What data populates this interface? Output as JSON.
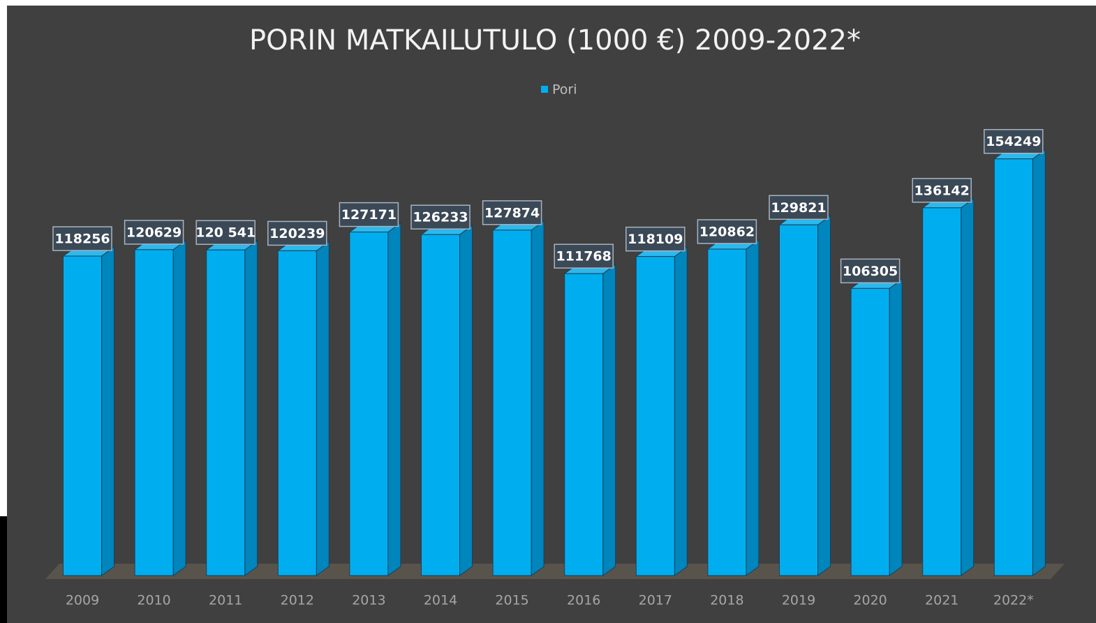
{
  "chart_data": {
    "type": "bar3d",
    "title": "PORIN MATKAILUTULO (1000 €) 2009-2022*",
    "categories": [
      "2009",
      "2010",
      "2011",
      "2012",
      "2013",
      "2014",
      "2015",
      "2016",
      "2017",
      "2018",
      "2019",
      "2020",
      "2021",
      "2022*"
    ],
    "series": [
      {
        "name": "Pori",
        "color": "#00aeef",
        "values": [
          118256,
          120629,
          120541,
          120239,
          127171,
          126233,
          127874,
          111768,
          118109,
          120862,
          129821,
          106305,
          136142,
          154249
        ],
        "value_labels": [
          "118256",
          "120629",
          "120 541",
          "120239",
          "127171",
          "126233",
          "127874",
          "111768",
          "118109",
          "120862",
          "129821",
          "106305",
          "136142",
          "154249"
        ]
      }
    ],
    "ylim": [
      0,
      180000
    ],
    "legend": "top"
  }
}
